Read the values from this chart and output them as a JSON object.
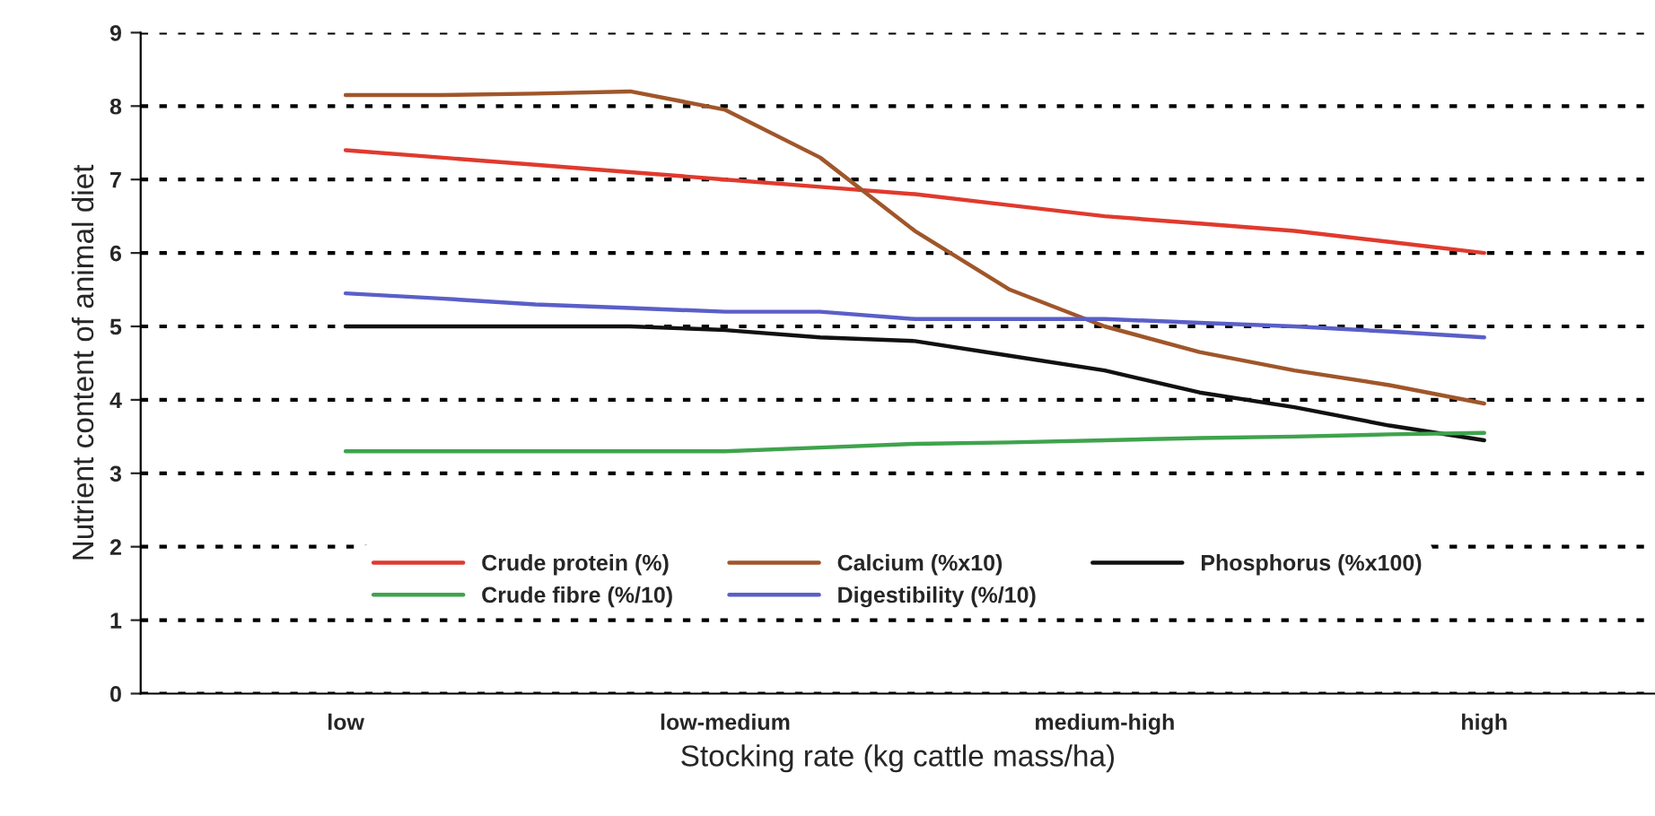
{
  "chart_data": {
    "type": "line",
    "xlabel": "Stocking rate (kg cattle mass/ha)",
    "ylabel": "Nutrient content of animal diet",
    "categories": [
      "low",
      null,
      null,
      null,
      "low-medium",
      null,
      null,
      null,
      "medium-high",
      null,
      null,
      null,
      "high"
    ],
    "ylim": [
      0,
      9
    ],
    "yticks": [
      0,
      1,
      2,
      3,
      4,
      5,
      6,
      7,
      8,
      9
    ],
    "grid": "y",
    "legend": "bottom",
    "marker": "none",
    "series": [
      {
        "name": "Crude protein (%)",
        "color": "#e03a2e",
        "values": [
          7.4,
          7.3,
          7.2,
          7.1,
          7.0,
          6.9,
          6.8,
          6.65,
          6.5,
          6.4,
          6.3,
          6.15,
          6.0
        ]
      },
      {
        "name": "Calcium (%x10)",
        "color": "#a0562a",
        "values": [
          8.15,
          8.15,
          8.17,
          8.2,
          7.95,
          7.3,
          6.3,
          5.5,
          5.0,
          4.65,
          4.4,
          4.2,
          3.95
        ]
      },
      {
        "name": "Phosphorus (%x100)",
        "color": "#111111",
        "values": [
          5.0,
          5.0,
          5.0,
          5.0,
          4.95,
          4.85,
          4.8,
          4.6,
          4.4,
          4.1,
          3.9,
          3.65,
          3.45
        ]
      },
      {
        "name": "Crude fibre (%/10)",
        "color": "#3fa34d",
        "values": [
          3.3,
          3.3,
          3.3,
          3.3,
          3.3,
          3.35,
          3.4,
          3.42,
          3.45,
          3.48,
          3.5,
          3.53,
          3.55
        ]
      },
      {
        "name": "Digestibility (%/10)",
        "color": "#5a5fc8",
        "values": [
          5.45,
          5.38,
          5.3,
          5.25,
          5.2,
          5.2,
          5.1,
          5.1,
          5.1,
          5.05,
          5.0,
          4.93,
          4.85
        ]
      }
    ]
  }
}
